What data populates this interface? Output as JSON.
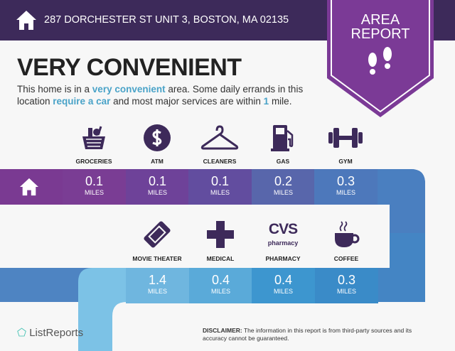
{
  "header": {
    "address": "287 DORCHESTER ST UNIT 3, BOSTON, MA 02135",
    "badge_line1": "AREA",
    "badge_line2": "REPORT"
  },
  "title": "VERY CONVENIENT",
  "description": {
    "p1": "This home is in a ",
    "h1": "very convenient",
    "p2": " area. Some daily errands in this location ",
    "h2": "require a car",
    "p3": " and most major services are within ",
    "h3": "1",
    "p4": " mile."
  },
  "row1": [
    {
      "label": "GROCERIES",
      "value": "0.1",
      "unit": "MILES",
      "icon": "grocery-basket-icon"
    },
    {
      "label": "ATM",
      "value": "0.1",
      "unit": "MILES",
      "icon": "dollar-icon"
    },
    {
      "label": "CLEANERS",
      "value": "0.1",
      "unit": "MILES",
      "icon": "hanger-icon"
    },
    {
      "label": "GAS",
      "value": "0.2",
      "unit": "MILES",
      "icon": "gas-pump-icon"
    },
    {
      "label": "GYM",
      "value": "0.3",
      "unit": "MILES",
      "icon": "dumbbell-icon"
    }
  ],
  "row2": [
    {
      "label": "MOVIE THEATER",
      "value": "1.4",
      "unit": "MILES",
      "icon": "ticket-icon"
    },
    {
      "label": "MEDICAL",
      "value": "0.4",
      "unit": "MILES",
      "icon": "medical-cross-icon"
    },
    {
      "label": "PHARMACY",
      "value": "0.4",
      "unit": "MILES",
      "icon": "cvs-pharmacy-logo",
      "logo_text": "CVS",
      "logo_sub": "pharmacy"
    },
    {
      "label": "COFFEE",
      "value": "0.3",
      "unit": "MILES",
      "icon": "coffee-cup-icon"
    }
  ],
  "footer": {
    "logo": "ListReports",
    "disclaimer_label": "DISCLAIMER:",
    "disclaimer": " The information in this report is from third-party sources and its accuracy cannot be guaranteed."
  },
  "colors": {
    "header": "#3d2a5a",
    "badge": "#7b3a96",
    "icon": "#3d2a5a",
    "highlight": "#4aa3c8"
  }
}
